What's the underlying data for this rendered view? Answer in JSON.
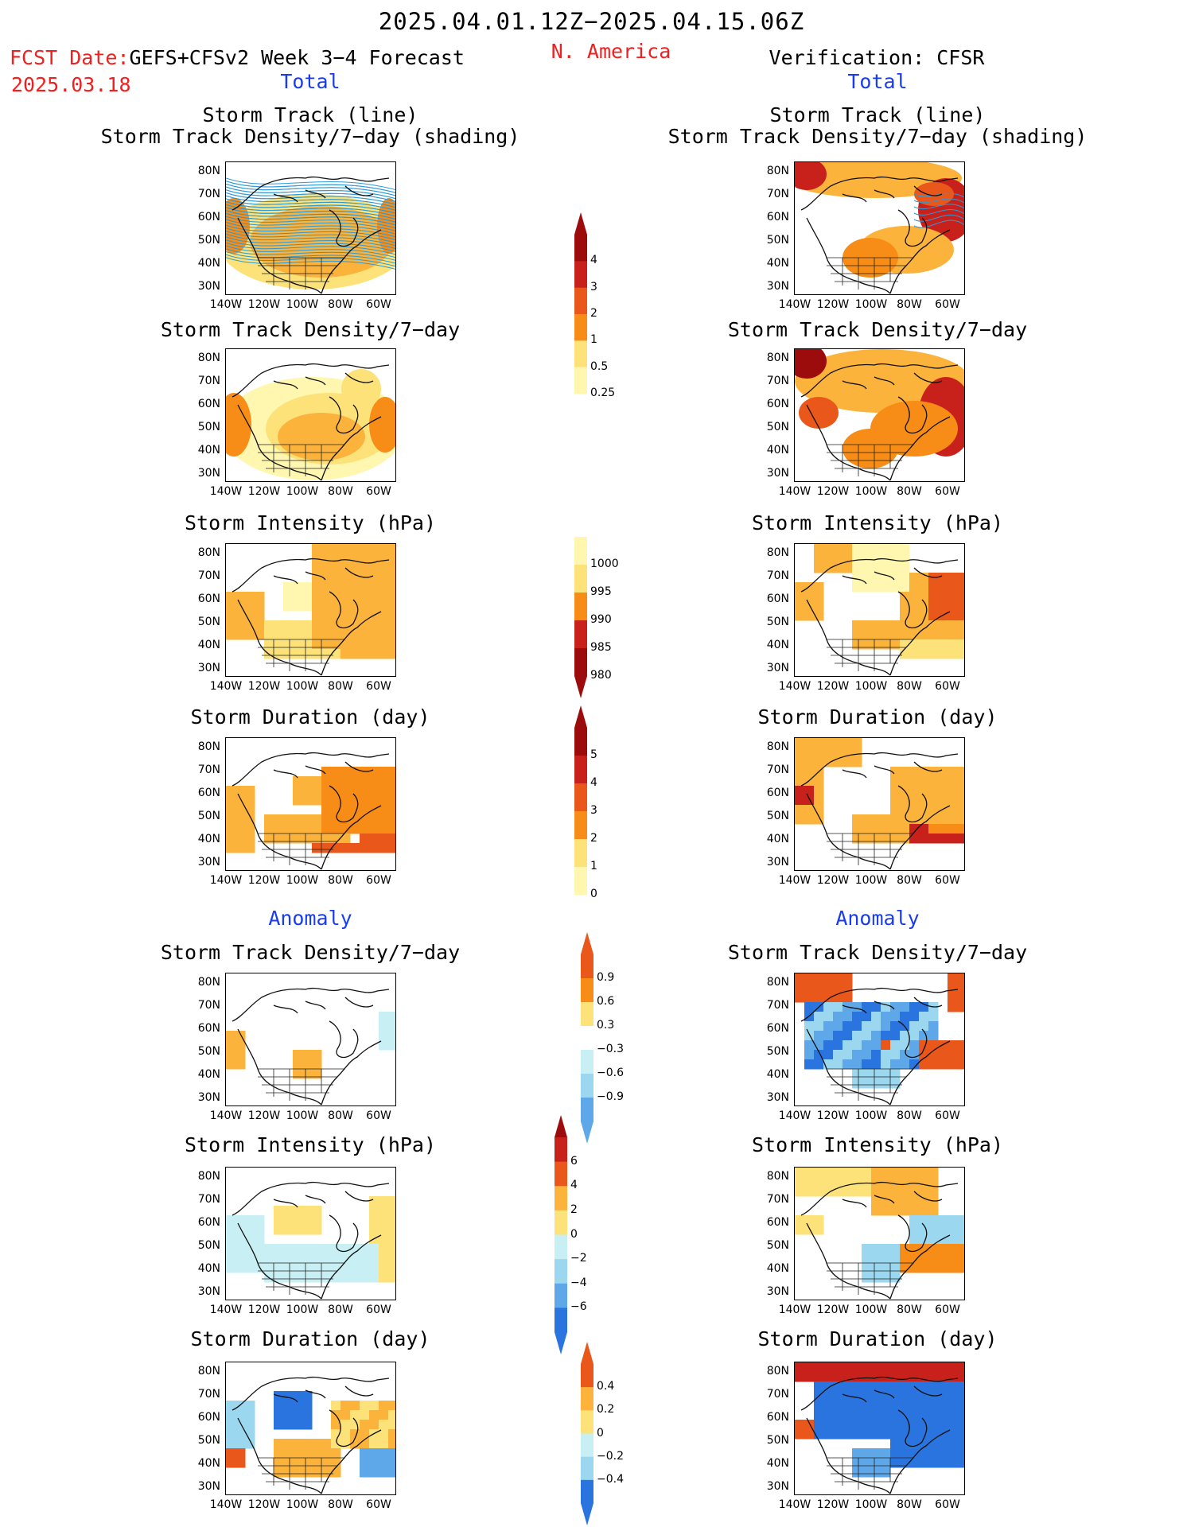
{
  "header": {
    "date_range": "2025.04.01.12Z−2025.04.15.06Z",
    "fcst_label": "FCST Date:",
    "fcst_model": "GEFS+CFSv2 Week 3−4 Forecast",
    "fcst_date": "2025.03.18",
    "region": "N. America",
    "verification": "Verification: CFSR"
  },
  "sections": {
    "total": "Total",
    "anomaly": "Anomaly"
  },
  "panel_titles": {
    "track_line": "Storm Track (line)",
    "track_shading": "Storm Track Density/7−day (shading)",
    "density": "Storm Track Density/7−day",
    "intensity": "Storm Intensity (hPa)",
    "duration": "Storm Duration (day)"
  },
  "axes": {
    "lat_labels": [
      "80N",
      "70N",
      "60N",
      "50N",
      "40N",
      "30N"
    ],
    "lon_labels": [
      "140W",
      "120W",
      "100W",
      "80W",
      "60W"
    ]
  },
  "colorbars": {
    "density_total": [
      "4",
      "3",
      "2",
      "1",
      "0.5",
      "0.25"
    ],
    "intensity_total": [
      "1000",
      "995",
      "990",
      "985",
      "980"
    ],
    "duration_total": [
      "5",
      "4",
      "3",
      "2",
      "1",
      "0"
    ],
    "density_anom": [
      "0.9",
      "0.6",
      "0.3",
      "−0.3",
      "−0.6",
      "−0.9"
    ],
    "intensity_anom": [
      "6",
      "4",
      "2",
      "0",
      "−2",
      "−4",
      "−6"
    ],
    "duration_anom": [
      "0.4",
      "0.2",
      "0",
      "−0.2",
      "−0.4"
    ]
  },
  "palettes": {
    "warm": [
      "#fff7b0",
      "#fde27a",
      "#fcb33c",
      "#f78c16",
      "#e9571a",
      "#c8211b",
      "#9c0c0c"
    ],
    "cool": [
      "#c8f0f4",
      "#9bd8f0",
      "#5ea8ea",
      "#2a74e0"
    ],
    "track_line": "#2a9ad8"
  }
}
